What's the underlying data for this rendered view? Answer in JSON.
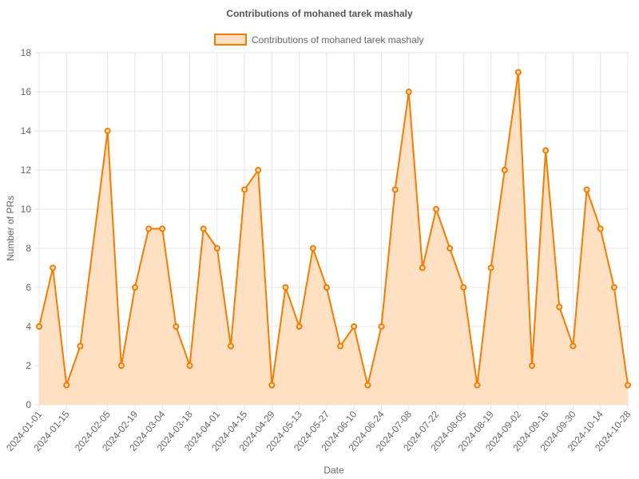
{
  "chart_data": {
    "type": "line",
    "title": "Contributions of mohaned tarek mashaly",
    "xlabel": "Date",
    "ylabel": "Number of PRs",
    "ylim": [
      0,
      18
    ],
    "y_ticks": [
      "0",
      "2",
      "4",
      "6",
      "8",
      "10",
      "12",
      "14",
      "16",
      "18"
    ],
    "x_tick_labels": [
      "2024-01-01",
      "2024-01-15",
      "2024-02-05",
      "2024-02-19",
      "2024-03-04",
      "2024-03-18",
      "2024-04-01",
      "2024-04-15",
      "2024-04-29",
      "2024-05-13",
      "2024-05-27",
      "2024-06-10",
      "2024-06-24",
      "2024-07-08",
      "2024-07-22",
      "2024-08-05",
      "2024-08-19",
      "2024-09-02",
      "2024-09-16",
      "2024-09-30",
      "2024-10-14",
      "2024-10-28"
    ],
    "grid": true,
    "legend_position": "top-center",
    "colors": {
      "line": "#f57c00",
      "fill": "#ffe0c2"
    },
    "series": [
      {
        "name": "Contributions of mohaned tarek mashaly",
        "x": [
          "2024-01-01",
          "2024-01-08",
          "2024-01-15",
          "2024-01-22",
          "2024-02-05",
          "2024-02-12",
          "2024-02-19",
          "2024-02-26",
          "2024-03-04",
          "2024-03-11",
          "2024-03-18",
          "2024-03-25",
          "2024-04-01",
          "2024-04-08",
          "2024-04-15",
          "2024-04-22",
          "2024-04-29",
          "2024-05-06",
          "2024-05-13",
          "2024-05-20",
          "2024-05-27",
          "2024-06-03",
          "2024-06-10",
          "2024-06-17",
          "2024-06-24",
          "2024-07-01",
          "2024-07-08",
          "2024-07-15",
          "2024-07-22",
          "2024-07-29",
          "2024-08-05",
          "2024-08-12",
          "2024-08-19",
          "2024-08-26",
          "2024-09-02",
          "2024-09-09",
          "2024-09-16",
          "2024-09-23",
          "2024-09-30",
          "2024-10-07",
          "2024-10-14",
          "2024-10-21",
          "2024-10-28"
        ],
        "values": [
          4,
          7,
          1,
          3,
          14,
          2,
          6,
          9,
          9,
          4,
          2,
          9,
          8,
          3,
          11,
          12,
          1,
          6,
          4,
          8,
          6,
          3,
          4,
          1,
          4,
          11,
          16,
          7,
          10,
          8,
          6,
          1,
          7,
          12,
          17,
          2,
          13,
          5,
          3,
          11,
          9,
          6,
          1
        ]
      }
    ]
  }
}
